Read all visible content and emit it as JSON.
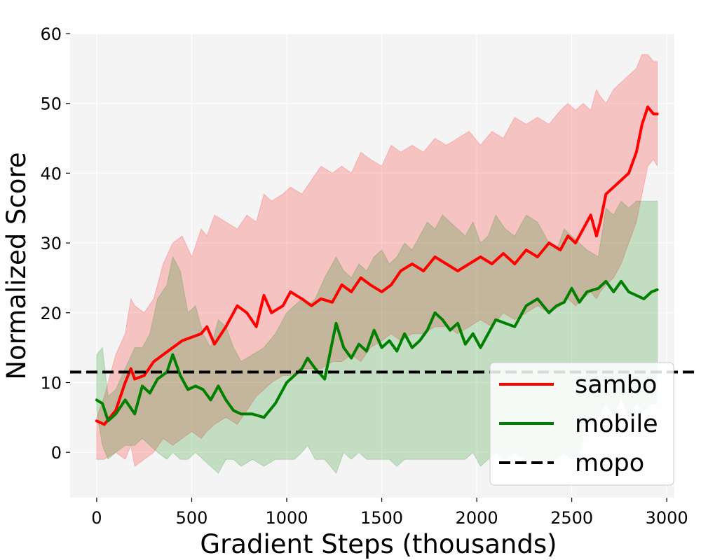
{
  "chart_data": {
    "type": "line",
    "xlabel": "Gradient Steps (thousands)",
    "ylabel": "Normalized Score",
    "xlim": [
      -140,
      3040
    ],
    "ylim": [
      -6.5,
      60
    ],
    "xticks": [
      0,
      500,
      1000,
      1500,
      2000,
      2500,
      3000
    ],
    "yticks": [
      0,
      10,
      20,
      30,
      40,
      50,
      60
    ],
    "grid": true,
    "legend_position": "lower-right",
    "series": [
      {
        "name": "sambo",
        "color": "#ff0000",
        "style": "solid",
        "x": [
          0,
          40,
          100,
          150,
          180,
          200,
          250,
          300,
          350,
          400,
          450,
          500,
          550,
          580,
          620,
          680,
          740,
          790,
          840,
          880,
          920,
          980,
          1020,
          1080,
          1130,
          1180,
          1240,
          1290,
          1340,
          1390,
          1440,
          1500,
          1550,
          1600,
          1660,
          1720,
          1780,
          1840,
          1900,
          1960,
          2020,
          2080,
          2140,
          2200,
          2260,
          2320,
          2380,
          2440,
          2480,
          2520,
          2560,
          2600,
          2630,
          2650,
          2680,
          2720,
          2760,
          2800,
          2840,
          2870,
          2900,
          2930,
          2950
        ],
        "y": [
          4.5,
          4,
          6,
          10,
          12,
          10.5,
          11,
          13,
          14,
          15,
          16,
          16.5,
          17,
          18,
          15.5,
          18,
          21,
          20,
          18,
          22.5,
          20,
          21,
          23,
          22,
          21,
          22,
          21.5,
          24,
          23,
          25,
          24,
          23,
          24,
          26,
          27,
          26,
          28,
          27,
          26,
          27,
          28,
          27,
          28.5,
          27,
          29,
          28,
          30,
          29,
          31,
          30,
          32,
          34,
          31,
          33,
          37,
          38,
          39,
          40,
          43,
          47,
          49.5,
          48.5,
          48.5
        ],
        "y_upper": [
          5,
          8,
          14,
          17,
          22,
          21,
          20,
          22,
          27,
          30,
          31,
          28,
          32,
          31,
          34,
          33,
          32,
          34,
          33,
          37,
          36,
          37,
          38,
          37,
          39,
          41,
          40,
          41,
          40,
          43,
          42,
          41,
          44,
          43,
          44,
          43,
          45,
          44,
          45,
          46,
          44,
          46,
          45,
          48,
          47,
          48,
          47,
          49,
          50,
          49,
          50,
          49,
          52,
          51,
          50,
          52,
          53,
          54,
          55,
          57,
          57,
          56,
          56
        ],
        "y_lower": [
          -1,
          -1,
          0,
          -1,
          1,
          -2,
          -1,
          0,
          2,
          1,
          2,
          3,
          2,
          3,
          4,
          5,
          4,
          6,
          8,
          9,
          10,
          11,
          11,
          12,
          12,
          12,
          13,
          13,
          14,
          13,
          15,
          16,
          17,
          16,
          17,
          17,
          18,
          18,
          17,
          18,
          19,
          18,
          20,
          19,
          20,
          21,
          20,
          21,
          22,
          21,
          22,
          23,
          22,
          23,
          24,
          25,
          27,
          30,
          33,
          37,
          41,
          42,
          41
        ]
      },
      {
        "name": "mobile",
        "color": "#008000",
        "style": "solid",
        "x": [
          0,
          30,
          60,
          100,
          150,
          200,
          240,
          280,
          320,
          370,
          400,
          440,
          480,
          520,
          560,
          600,
          640,
          680,
          720,
          760,
          820,
          880,
          940,
          1000,
          1040,
          1080,
          1110,
          1150,
          1200,
          1260,
          1300,
          1340,
          1380,
          1420,
          1460,
          1500,
          1540,
          1580,
          1620,
          1660,
          1700,
          1740,
          1780,
          1820,
          1860,
          1900,
          1940,
          1980,
          2020,
          2060,
          2100,
          2150,
          2200,
          2260,
          2320,
          2380,
          2420,
          2460,
          2500,
          2540,
          2580,
          2640,
          2680,
          2720,
          2760,
          2800,
          2840,
          2880,
          2920,
          2950
        ],
        "y": [
          7.5,
          7,
          4.5,
          5.5,
          7.5,
          5.5,
          9.5,
          8.5,
          10.5,
          11.5,
          14,
          11,
          9,
          9.5,
          9,
          7.5,
          9.5,
          7.5,
          6,
          5.5,
          5.5,
          5,
          7,
          10,
          11,
          12,
          13.5,
          12,
          10.5,
          18.5,
          15,
          13.5,
          15.5,
          14.5,
          17.5,
          15,
          16,
          14.5,
          17,
          15,
          16,
          17.5,
          20,
          19,
          17.5,
          18.5,
          15.5,
          17,
          15,
          17,
          19,
          18.5,
          18,
          21,
          22,
          20,
          21,
          21.5,
          23.5,
          21.5,
          23,
          23.5,
          24.5,
          23,
          24.5,
          23,
          22.5,
          22,
          23,
          23.3
        ],
        "y_upper": [
          14,
          15,
          8,
          9,
          12,
          15,
          15,
          17,
          22,
          24,
          28,
          26,
          20,
          21,
          17,
          15,
          19,
          18,
          15,
          13,
          14,
          15,
          17,
          20,
          21,
          22,
          21,
          22,
          25,
          28,
          26,
          25,
          27,
          26,
          28,
          29,
          27,
          28,
          30,
          29,
          31,
          33,
          32,
          34,
          33,
          32,
          31,
          33,
          30,
          31,
          34,
          32,
          31,
          34,
          33,
          30,
          29,
          32,
          31,
          30,
          29,
          28,
          35,
          34,
          36,
          35,
          36,
          36,
          36,
          36
        ],
        "y_lower": [
          6,
          1,
          -1,
          0,
          1,
          1,
          2,
          1,
          0,
          -1,
          0,
          -1,
          -1,
          0,
          -1,
          -2,
          -3,
          -1,
          -1,
          -2,
          -1,
          -2,
          -1,
          -1,
          -1,
          0,
          1,
          -1,
          -1,
          -3,
          0,
          -1,
          0,
          -1,
          -1,
          -1,
          -1,
          -2,
          -1,
          -1,
          -1,
          -1,
          -1,
          -1,
          -1,
          -1,
          -1,
          0,
          -2,
          -1,
          0,
          -1,
          0,
          -1,
          -1,
          -1,
          -1,
          0,
          -1,
          0,
          4,
          5,
          7,
          5,
          8,
          5,
          7,
          6,
          7,
          7
        ]
      },
      {
        "name": "mopo",
        "color": "#000000",
        "style": "dashed",
        "y_const": 11.5
      }
    ]
  }
}
